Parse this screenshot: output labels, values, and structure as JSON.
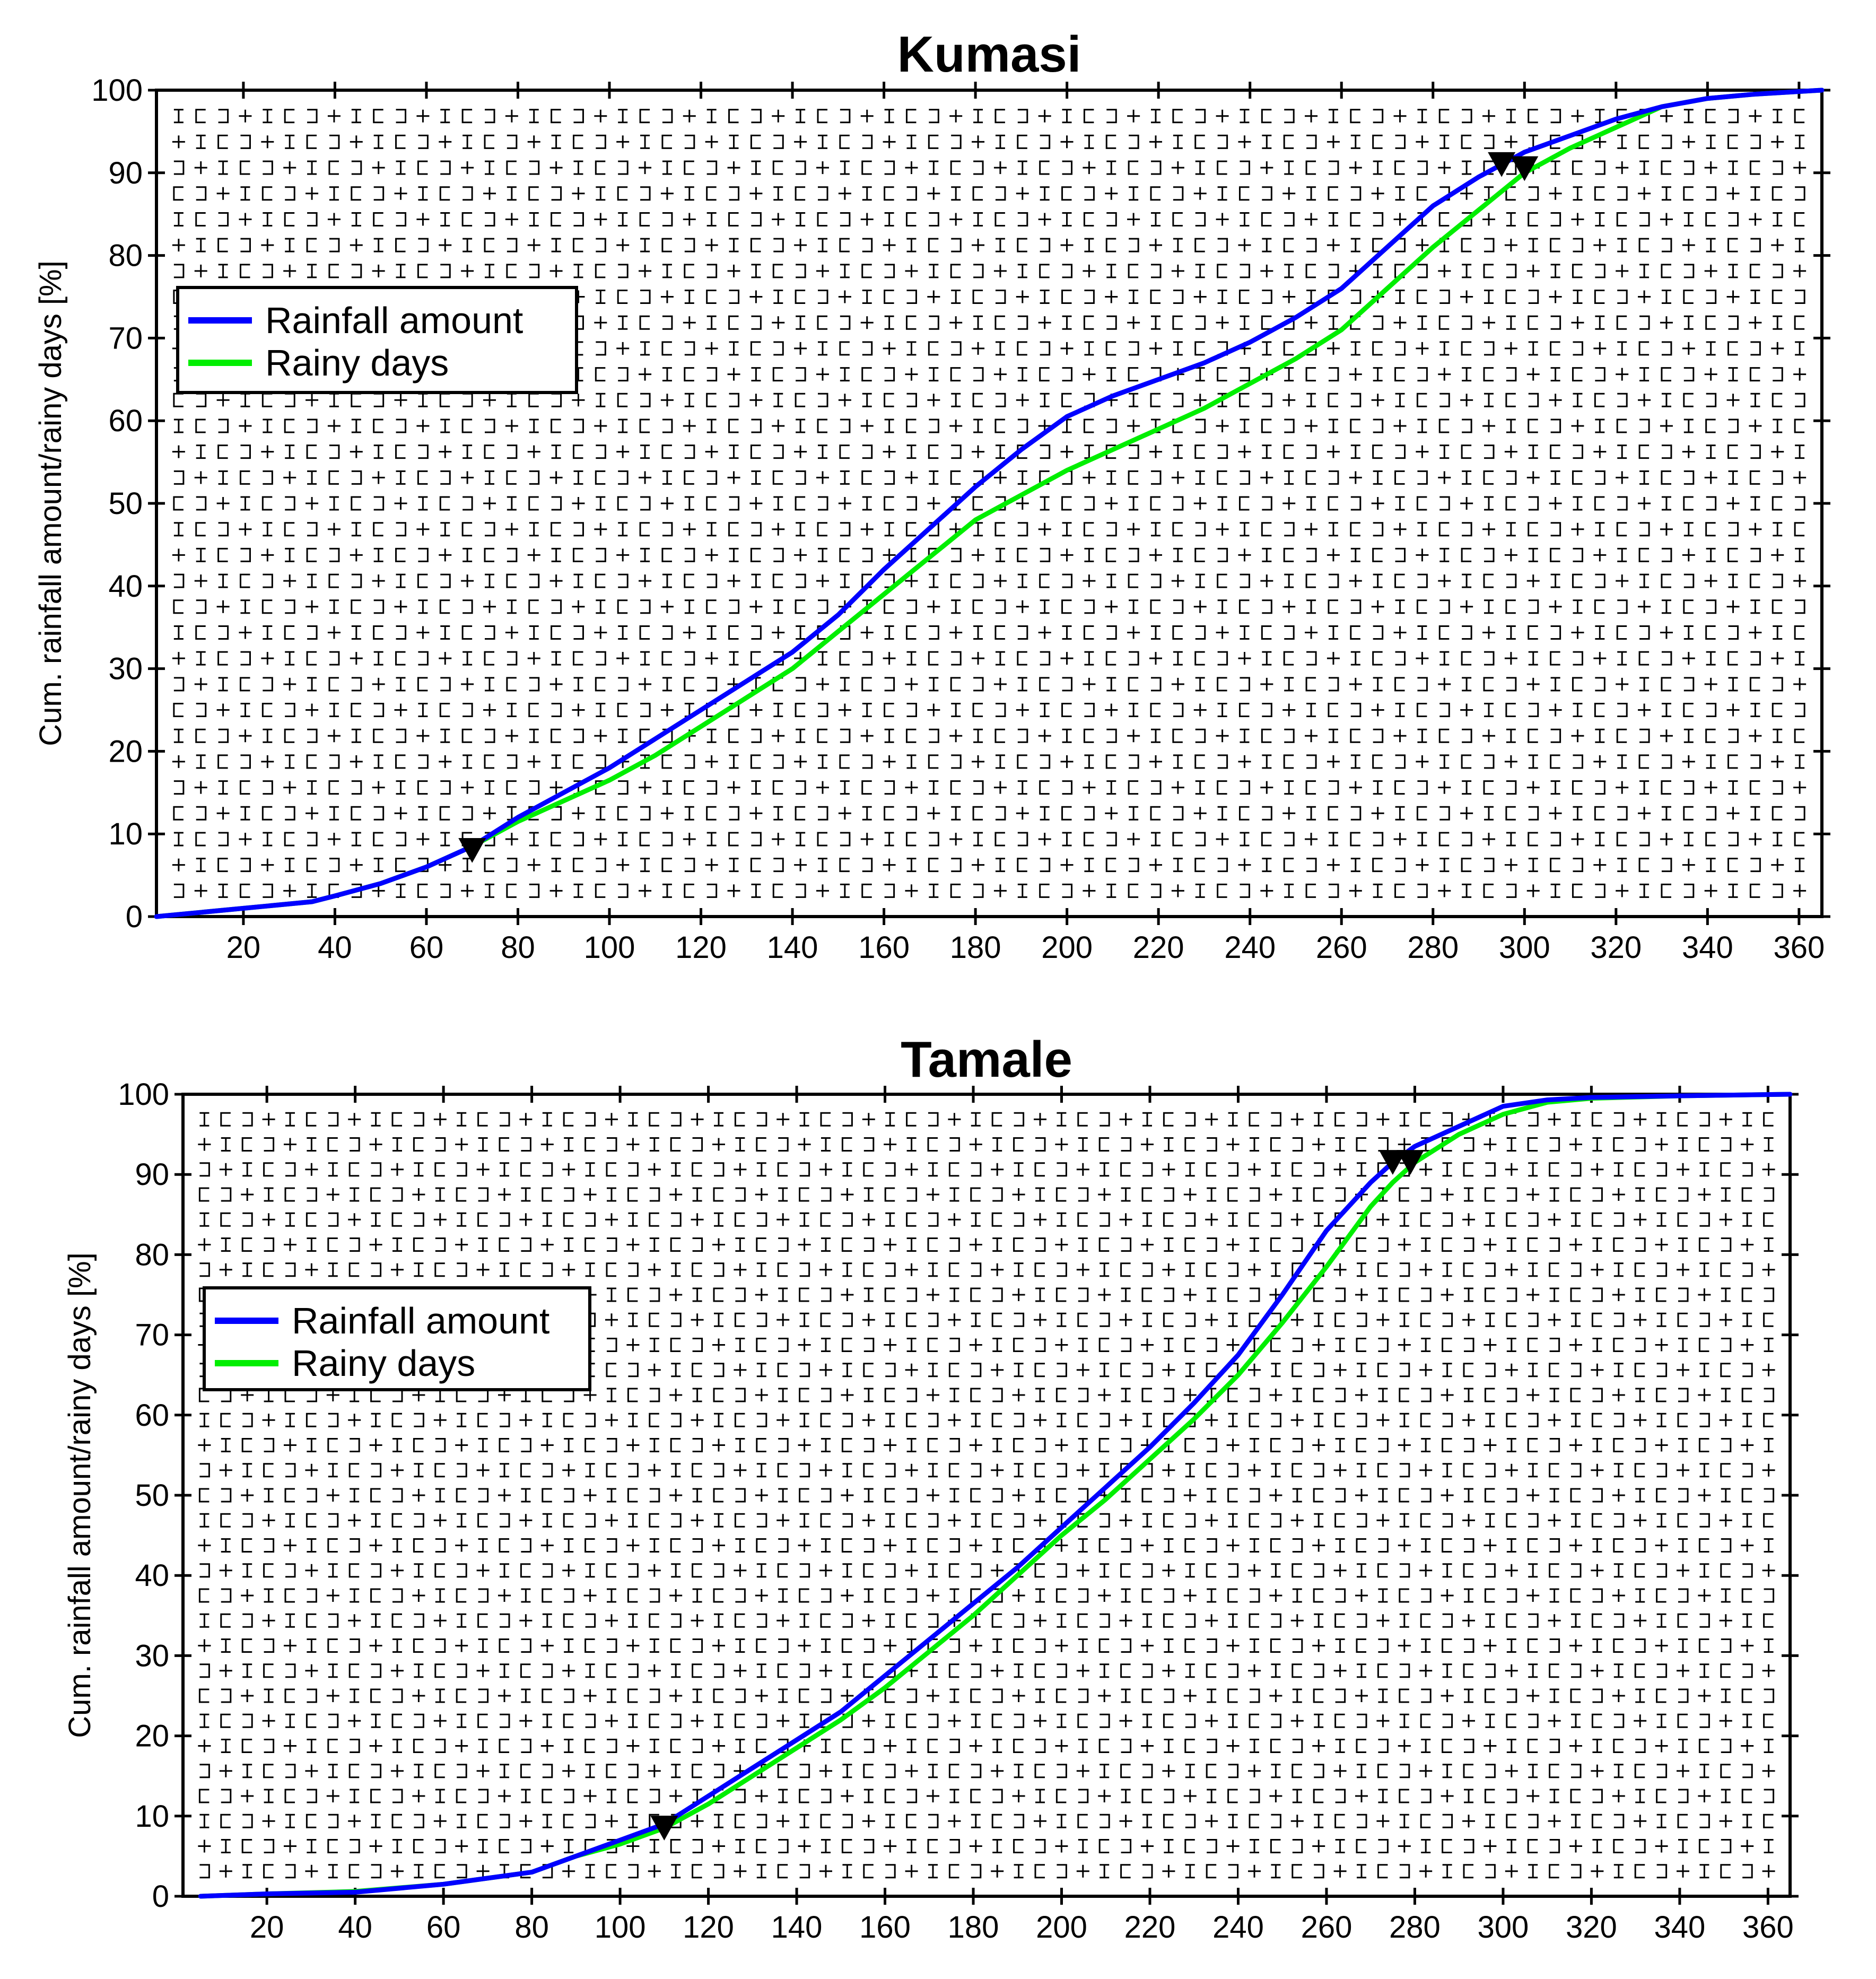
{
  "chart_data": [
    {
      "type": "line",
      "title": "Kumasi",
      "xlabel": "",
      "ylabel": "Cum. rainfall amount/rainy days [%]",
      "xlim": [
        1,
        365
      ],
      "ylim": [
        0,
        100
      ],
      "xticks": [
        20,
        40,
        60,
        80,
        100,
        120,
        140,
        160,
        180,
        200,
        220,
        240,
        260,
        280,
        300,
        320,
        340,
        360
      ],
      "yticks": [
        0,
        10,
        20,
        30,
        40,
        50,
        60,
        70,
        80,
        90,
        100
      ],
      "grid": true,
      "legend": "upper-left",
      "series": [
        {
          "name": "Rainfall amount",
          "color": "#0000ff",
          "x": [
            1,
            20,
            35,
            40,
            50,
            60,
            70,
            80,
            90,
            100,
            110,
            120,
            130,
            140,
            150,
            160,
            170,
            180,
            190,
            200,
            210,
            220,
            230,
            240,
            250,
            260,
            270,
            280,
            290,
            300,
            310,
            320,
            330,
            340,
            350,
            365
          ],
          "y": [
            0,
            1,
            1.8,
            2.5,
            4,
            6,
            8.5,
            12,
            15,
            18,
            21.5,
            25,
            28.5,
            32,
            36.5,
            42,
            47,
            52,
            56.5,
            60.5,
            63,
            65,
            67,
            69.5,
            72.5,
            76,
            81,
            86,
            89.5,
            92.5,
            94.5,
            96.5,
            98,
            99,
            99.5,
            100
          ]
        },
        {
          "name": "Rainy days",
          "color": "#00ee00",
          "x": [
            1,
            20,
            35,
            40,
            50,
            60,
            70,
            80,
            90,
            100,
            110,
            120,
            130,
            140,
            150,
            160,
            170,
            180,
            190,
            200,
            210,
            220,
            230,
            240,
            250,
            260,
            270,
            280,
            290,
            300,
            310,
            320,
            330,
            340,
            350,
            365
          ],
          "y": [
            0,
            1,
            1.8,
            2.5,
            4,
            6,
            8.5,
            11.5,
            14,
            16.5,
            19.5,
            23,
            26.5,
            30,
            34.5,
            39,
            43.5,
            48,
            51,
            54,
            56.5,
            59,
            61.5,
            64.5,
            67.5,
            71,
            76,
            81,
            85.5,
            90,
            93,
            95.5,
            98,
            99,
            99.5,
            100
          ]
        }
      ],
      "markers": [
        {
          "x": 70,
          "y": 8
        },
        {
          "x": 295,
          "y": 91
        },
        {
          "x": 300,
          "y": 90.5
        }
      ]
    },
    {
      "type": "line",
      "title": "Tamale",
      "xlabel": "",
      "ylabel": "Cum. rainfall amount/rainy days [%]",
      "xlim": [
        1,
        365
      ],
      "ylim": [
        0,
        100
      ],
      "xticks": [
        20,
        40,
        60,
        80,
        100,
        120,
        140,
        160,
        180,
        200,
        220,
        240,
        260,
        280,
        300,
        320,
        340,
        360
      ],
      "yticks": [
        0,
        10,
        20,
        30,
        40,
        50,
        60,
        70,
        80,
        90,
        100
      ],
      "grid": true,
      "legend": "upper-left",
      "series": [
        {
          "name": "Rainfall amount",
          "color": "#0000ff",
          "x": [
            5,
            20,
            40,
            60,
            80,
            90,
            100,
            110,
            120,
            130,
            140,
            150,
            160,
            170,
            180,
            190,
            200,
            210,
            220,
            230,
            240,
            250,
            260,
            270,
            275,
            280,
            290,
            300,
            310,
            320,
            340,
            365
          ],
          "y": [
            0,
            0.3,
            0.5,
            1.5,
            3,
            5,
            7,
            9,
            12.5,
            16,
            19.5,
            23,
            27.5,
            32,
            36.5,
            41,
            46,
            51,
            56,
            61.5,
            67.5,
            75,
            83,
            89,
            91.5,
            93.5,
            96,
            98.5,
            99.3,
            99.6,
            99.8,
            100
          ]
        },
        {
          "name": "Rainy days",
          "color": "#00ee00",
          "x": [
            5,
            20,
            40,
            60,
            80,
            90,
            100,
            110,
            120,
            130,
            140,
            150,
            160,
            170,
            180,
            190,
            200,
            210,
            220,
            230,
            240,
            250,
            260,
            270,
            275,
            280,
            290,
            300,
            310,
            320,
            340,
            365
          ],
          "y": [
            0,
            0.3,
            0.6,
            1.5,
            3,
            5,
            6.5,
            8.5,
            11.5,
            15,
            18.5,
            22,
            26,
            30.5,
            35,
            40,
            45,
            49.5,
            54.5,
            59.5,
            65,
            71.5,
            78.5,
            86,
            89,
            91.5,
            95,
            97.5,
            99,
            99.5,
            99.8,
            100
          ]
        }
      ],
      "markers": [
        {
          "x": 110,
          "y": 8.5
        },
        {
          "x": 275,
          "y": 91.5
        },
        {
          "x": 279,
          "y": 91.5
        }
      ]
    }
  ]
}
